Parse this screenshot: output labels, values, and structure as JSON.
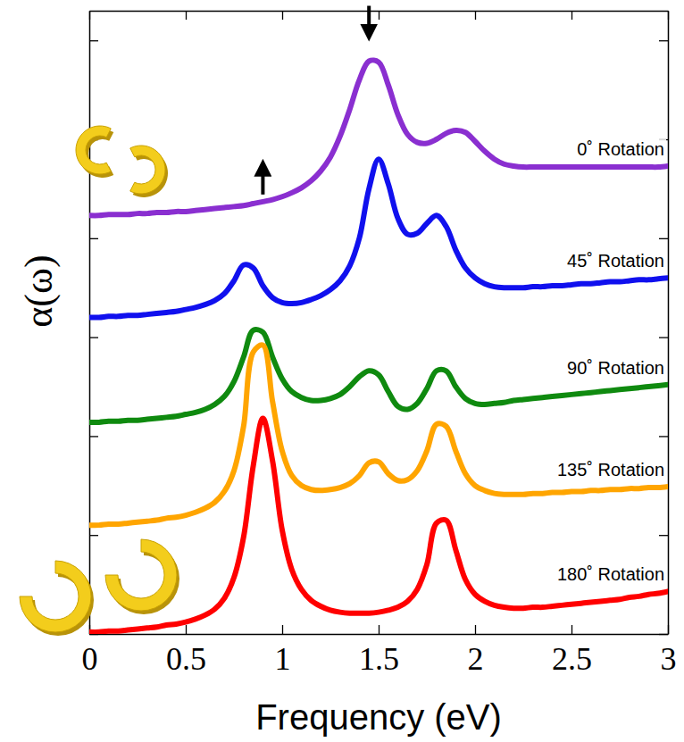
{
  "chart_data": {
    "type": "line",
    "xlabel": "Frequency (eV)",
    "ylabel": "α(ω)",
    "xlim": [
      0,
      3
    ],
    "ylim": [
      0,
      6.3
    ],
    "xticks": [
      0,
      0.5,
      1,
      1.5,
      2,
      2.5,
      3
    ],
    "yticks": [
      0,
      1,
      2,
      3,
      4,
      5,
      6
    ],
    "tick_labels": "x",
    "x": [
      0,
      0.05,
      0.1,
      0.15,
      0.2,
      0.25,
      0.3,
      0.35,
      0.4,
      0.45,
      0.5,
      0.55,
      0.6,
      0.65,
      0.7,
      0.75,
      0.8,
      0.85,
      0.9,
      0.95,
      1,
      1.05,
      1.1,
      1.15,
      1.2,
      1.25,
      1.3,
      1.35,
      1.4,
      1.45,
      1.5,
      1.55,
      1.6,
      1.65,
      1.7,
      1.75,
      1.8,
      1.85,
      1.9,
      1.95,
      2,
      2.05,
      2.1,
      2.15,
      2.2,
      2.25,
      2.3,
      2.35,
      2.4,
      2.45,
      2.5,
      2.55,
      2.6,
      2.65,
      2.7,
      2.75,
      2.8,
      2.85,
      2.9,
      2.95,
      3
    ],
    "series": [
      {
        "name": "0˚ Rotation",
        "color": "#8a2fd0",
        "values": [
          4.23,
          4.23,
          4.24,
          4.24,
          4.24,
          4.25,
          4.25,
          4.26,
          4.26,
          4.27,
          4.27,
          4.28,
          4.29,
          4.3,
          4.31,
          4.32,
          4.33,
          4.35,
          4.37,
          4.39,
          4.42,
          4.46,
          4.51,
          4.58,
          4.68,
          4.82,
          5.03,
          5.3,
          5.6,
          5.79,
          5.78,
          5.55,
          5.25,
          5.05,
          4.97,
          4.96,
          5.0,
          5.06,
          5.09,
          5.07,
          4.98,
          4.88,
          4.8,
          4.75,
          4.73,
          4.72,
          4.72,
          4.72,
          4.72,
          4.72,
          4.72,
          4.72,
          4.72,
          4.72,
          4.72,
          4.72,
          4.72,
          4.72,
          4.72,
          4.72,
          4.73
        ]
      },
      {
        "name": "45˚ Rotation",
        "color": "#1010ee",
        "values": [
          3.2,
          3.2,
          3.21,
          3.21,
          3.22,
          3.22,
          3.23,
          3.24,
          3.25,
          3.26,
          3.28,
          3.3,
          3.33,
          3.37,
          3.44,
          3.57,
          3.73,
          3.7,
          3.52,
          3.4,
          3.35,
          3.34,
          3.35,
          3.38,
          3.42,
          3.48,
          3.57,
          3.72,
          4.0,
          4.5,
          4.8,
          4.55,
          4.2,
          4.04,
          4.05,
          4.15,
          4.23,
          4.12,
          3.88,
          3.7,
          3.6,
          3.54,
          3.51,
          3.5,
          3.5,
          3.5,
          3.51,
          3.51,
          3.52,
          3.52,
          3.53,
          3.54,
          3.54,
          3.55,
          3.56,
          3.56,
          3.57,
          3.58,
          3.58,
          3.59,
          3.6
        ]
      },
      {
        "name": "90˚ Rotation",
        "color": "#0f8a0f",
        "values": [
          2.14,
          2.14,
          2.15,
          2.15,
          2.16,
          2.16,
          2.17,
          2.18,
          2.19,
          2.2,
          2.22,
          2.24,
          2.27,
          2.32,
          2.4,
          2.55,
          2.8,
          3.07,
          3.05,
          2.8,
          2.58,
          2.45,
          2.39,
          2.36,
          2.36,
          2.38,
          2.42,
          2.5,
          2.6,
          2.66,
          2.62,
          2.45,
          2.3,
          2.27,
          2.33,
          2.48,
          2.66,
          2.66,
          2.5,
          2.38,
          2.33,
          2.32,
          2.33,
          2.34,
          2.36,
          2.37,
          2.38,
          2.39,
          2.4,
          2.41,
          2.42,
          2.43,
          2.44,
          2.45,
          2.46,
          2.47,
          2.48,
          2.49,
          2.5,
          2.51,
          2.52
        ]
      },
      {
        "name": "135˚ Rotation",
        "color": "#ffa500",
        "values": [
          1.1,
          1.1,
          1.11,
          1.11,
          1.12,
          1.13,
          1.14,
          1.15,
          1.17,
          1.18,
          1.2,
          1.23,
          1.27,
          1.33,
          1.44,
          1.65,
          2.1,
          2.85,
          2.92,
          2.35,
          1.85,
          1.6,
          1.5,
          1.46,
          1.45,
          1.46,
          1.48,
          1.52,
          1.6,
          1.73,
          1.74,
          1.62,
          1.55,
          1.56,
          1.65,
          1.85,
          2.12,
          2.1,
          1.85,
          1.62,
          1.5,
          1.45,
          1.42,
          1.41,
          1.41,
          1.41,
          1.42,
          1.42,
          1.43,
          1.43,
          1.44,
          1.44,
          1.45,
          1.45,
          1.46,
          1.46,
          1.47,
          1.47,
          1.48,
          1.48,
          1.49
        ]
      },
      {
        "name": "180˚ Rotation",
        "color": "#ff0000",
        "values": [
          0.02,
          0.02,
          0.03,
          0.03,
          0.04,
          0.05,
          0.06,
          0.07,
          0.09,
          0.1,
          0.12,
          0.15,
          0.19,
          0.25,
          0.36,
          0.57,
          0.98,
          1.7,
          2.18,
          1.75,
          1.05,
          0.65,
          0.45,
          0.34,
          0.28,
          0.24,
          0.22,
          0.21,
          0.21,
          0.21,
          0.22,
          0.24,
          0.27,
          0.33,
          0.45,
          0.7,
          1.12,
          1.15,
          0.85,
          0.55,
          0.4,
          0.33,
          0.29,
          0.27,
          0.26,
          0.26,
          0.27,
          0.27,
          0.28,
          0.29,
          0.3,
          0.31,
          0.32,
          0.33,
          0.34,
          0.35,
          0.37,
          0.38,
          0.4,
          0.41,
          0.43
        ]
      }
    ]
  }
}
